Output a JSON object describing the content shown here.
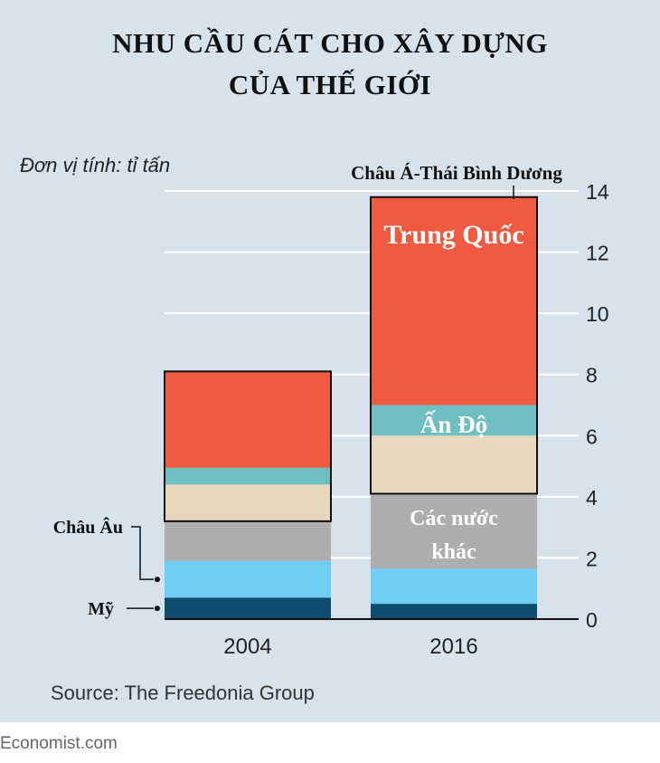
{
  "title_lines": [
    "NHU CẦU CÁT CHO XÂY DỰNG",
    "CỦA THẾ GIỚI"
  ],
  "unit_label": "Đơn vị tính: tỉ tấn",
  "source": "Source: The Freedonia Group",
  "brand": "Economist.com",
  "chart_data": {
    "type": "bar",
    "stacked": true,
    "categories": [
      "2004",
      "2016"
    ],
    "ylim": [
      0,
      14
    ],
    "yticks": [
      0,
      2,
      4,
      6,
      8,
      10,
      12,
      14
    ],
    "grid": true,
    "axis_side": "right",
    "series": [
      {
        "name": "Mỹ",
        "color": "#0e4d6e",
        "values": [
          0.7,
          0.5
        ]
      },
      {
        "name": "Châu Âu",
        "color": "#6dcdf2",
        "values": [
          1.2,
          1.15
        ]
      },
      {
        "name": "Các nước khác",
        "color": "#aeaeb1",
        "values": [
          1.3,
          2.45
        ]
      },
      {
        "name": "",
        "color": "#e8d6bd",
        "values": [
          1.2,
          1.9
        ]
      },
      {
        "name": "Ấn Độ",
        "color": "#6dbfc2",
        "values": [
          0.55,
          1.0
        ]
      },
      {
        "name": "Trung Quốc",
        "color": "#ef5a41",
        "values": [
          3.15,
          6.8
        ]
      }
    ],
    "group_label": "Châu Á-Thái Bình Dương",
    "colors": {
      "outline": "#111111",
      "grid": "#ffffff",
      "panel": "#d6e3ec"
    }
  }
}
